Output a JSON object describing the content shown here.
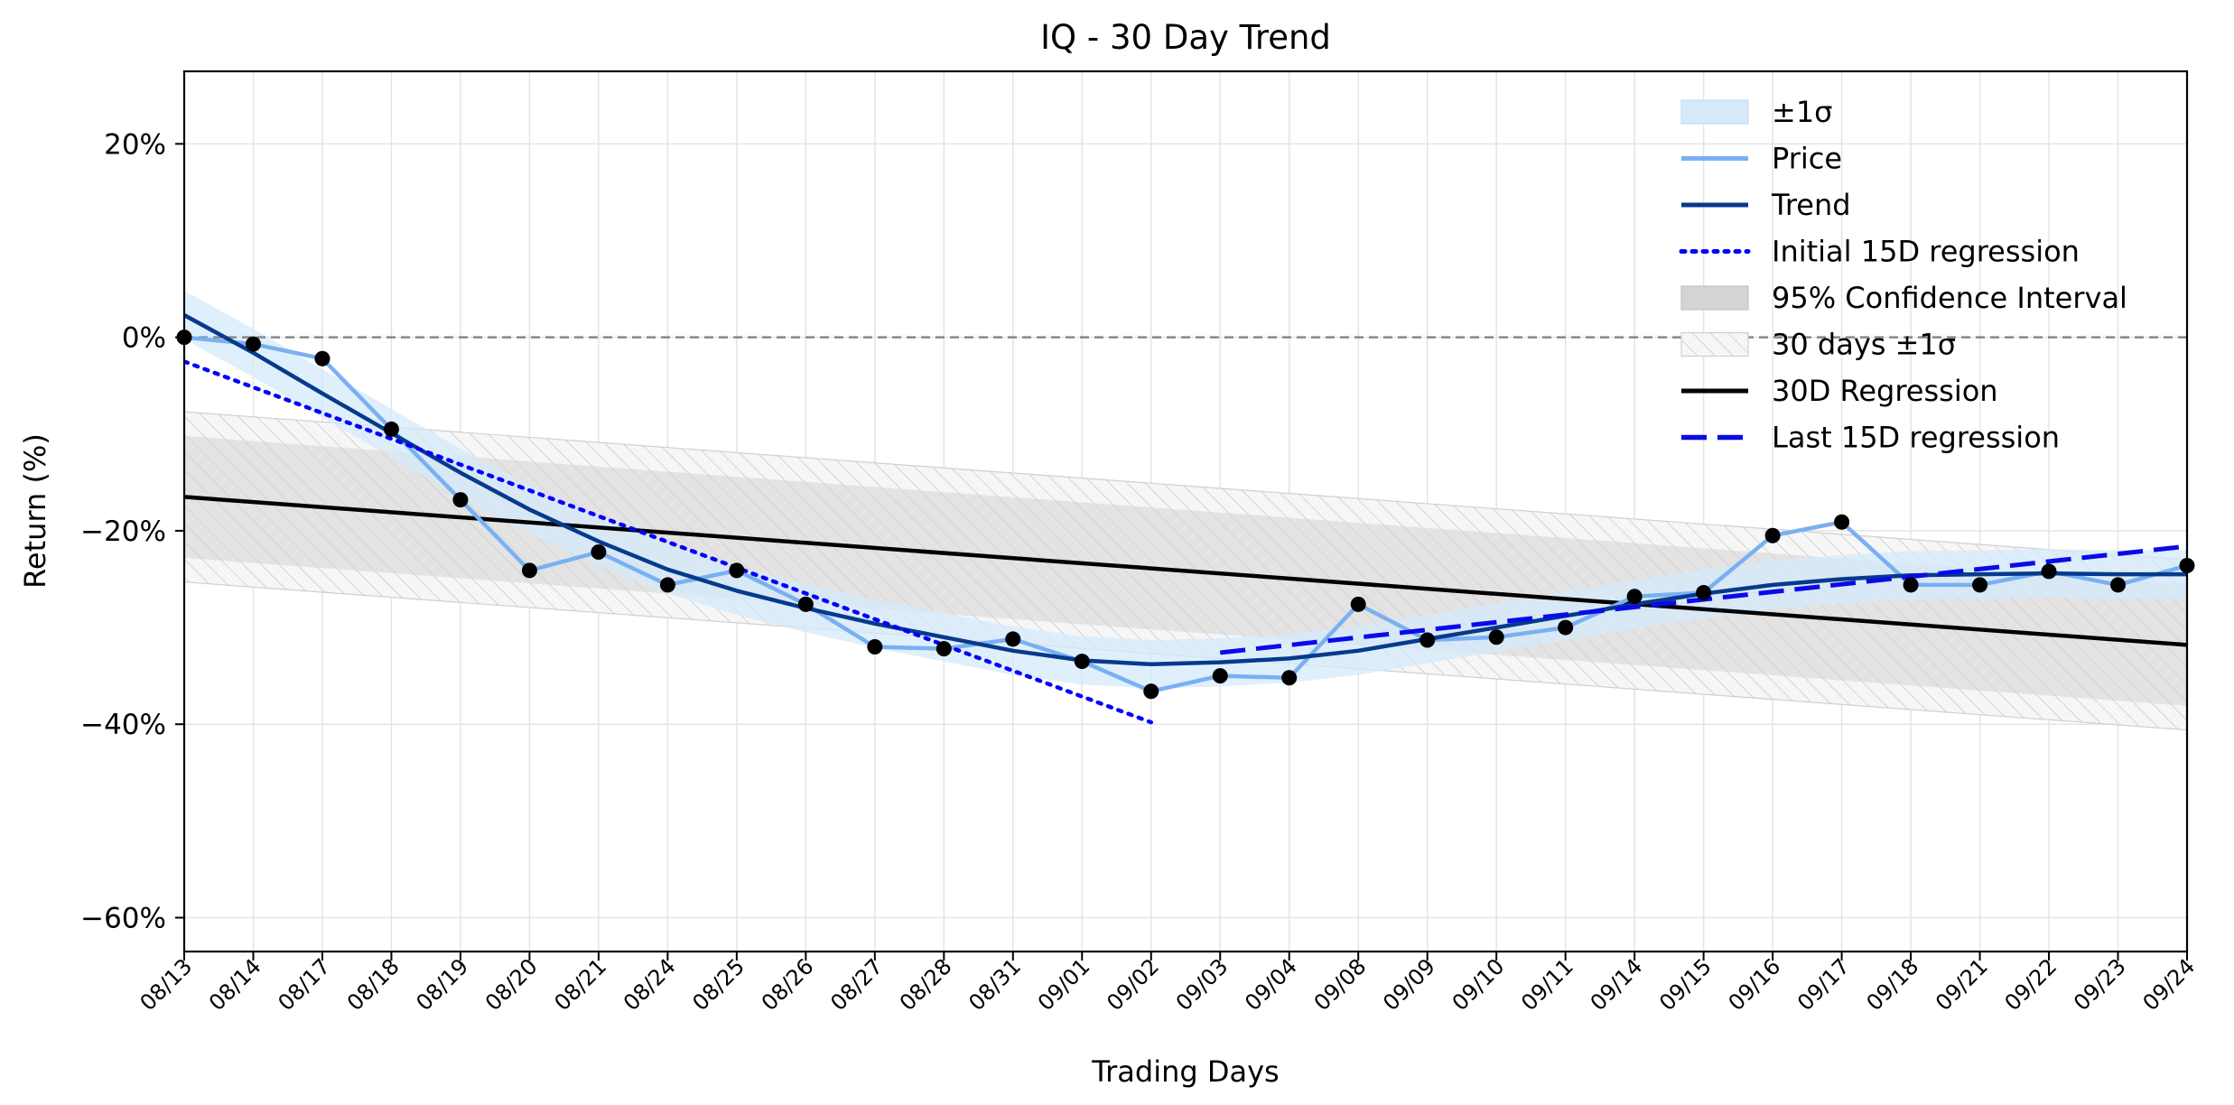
{
  "chart_data": {
    "type": "line",
    "title": "IQ - 30 Day Trend",
    "xlabel": "Trading Days",
    "ylabel": "Return (%)",
    "ylim": [
      -63.5,
      27.5
    ],
    "yticks": [
      20,
      0,
      -20,
      -40,
      -60
    ],
    "ytick_labels": [
      "20%",
      "0%",
      "−20%",
      "−40%",
      "−60%"
    ],
    "categories": [
      "08/13",
      "08/14",
      "08/17",
      "08/18",
      "08/19",
      "08/20",
      "08/21",
      "08/24",
      "08/25",
      "08/26",
      "08/27",
      "08/28",
      "08/31",
      "09/01",
      "09/02",
      "09/03",
      "09/04",
      "09/08",
      "09/09",
      "09/10",
      "09/11",
      "09/14",
      "09/15",
      "09/16",
      "09/17",
      "09/18",
      "09/21",
      "09/22",
      "09/23",
      "09/24"
    ],
    "grid": true,
    "legend_position": "top-right",
    "price": [
      0.0,
      -0.7,
      -2.2,
      -9.5,
      -16.8,
      -24.1,
      -22.2,
      -25.6,
      -24.1,
      -27.6,
      -32.0,
      -32.2,
      -31.2,
      -33.5,
      -36.6,
      -35.0,
      -35.2,
      -27.6,
      -31.3,
      -31.0,
      -30.0,
      -26.8,
      -26.4,
      -20.5,
      -19.1,
      -25.6,
      -25.6,
      -24.2,
      -25.6,
      -23.6
    ],
    "trend": [
      2.3,
      -1.6,
      -5.8,
      -9.9,
      -14.0,
      -17.8,
      -21.1,
      -24.0,
      -26.2,
      -28.0,
      -29.6,
      -31.0,
      -32.4,
      -33.4,
      -33.8,
      -33.6,
      -33.2,
      -32.4,
      -31.2,
      -30.0,
      -28.8,
      -27.6,
      -26.5,
      -25.6,
      -25.0,
      -24.6,
      -24.5,
      -24.4,
      -24.5,
      -24.5
    ],
    "sigma_halfwidth": 2.5,
    "initial_15d_regression": {
      "x_range": [
        0,
        14
      ],
      "y": [
        -2.5,
        -39.8
      ]
    },
    "regression_30d": {
      "x_range": [
        0,
        29
      ],
      "y": [
        -16.5,
        -31.8
      ],
      "ci_halfwidth": [
        6.3,
        6.3
      ],
      "sigma_halfwidth": [
        8.8,
        8.8
      ]
    },
    "last_15d_regression": {
      "x_range": [
        15,
        29
      ],
      "y": [
        -32.6,
        -21.6
      ]
    },
    "zero_line": 0,
    "legend": [
      "±1σ",
      "Price",
      "Trend",
      "Initial 15D regression",
      "95% Confidence Interval",
      "30 days ±1σ",
      "30D Regression",
      "Last 15D regression"
    ],
    "colors": {
      "sigma_band": "#d6e9fb",
      "price": "#79b0f2",
      "trend": "#053a8c",
      "initial_reg": "#0000ff",
      "ci_band": "#d4d4d4",
      "hatch": "#c8c8c8",
      "reg30": "#000000",
      "last_reg": "#0a0aea",
      "zero_line": "#888888",
      "grid": "#e4e4e4",
      "marker": "#000000"
    }
  }
}
